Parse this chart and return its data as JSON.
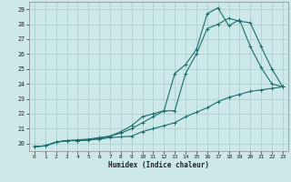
{
  "title": "",
  "xlabel": "Humidex (Indice chaleur)",
  "bg_color": "#cce8e8",
  "grid_color": "#aacccc",
  "line_color": "#1a6e6a",
  "xlim": [
    -0.5,
    23.5
  ],
  "ylim": [
    19.5,
    29.5
  ],
  "yticks": [
    20,
    21,
    22,
    23,
    24,
    25,
    26,
    27,
    28,
    29
  ],
  "xticks": [
    0,
    1,
    2,
    3,
    4,
    5,
    6,
    7,
    8,
    9,
    10,
    11,
    12,
    13,
    14,
    15,
    16,
    17,
    18,
    19,
    20,
    21,
    22,
    23
  ],
  "line1_x": [
    0,
    1,
    2,
    3,
    4,
    5,
    6,
    7,
    8,
    9,
    10,
    11,
    12,
    13,
    14,
    15,
    16,
    17,
    18,
    19,
    20,
    21,
    22,
    23
  ],
  "line1_y": [
    19.8,
    19.85,
    20.1,
    20.2,
    20.2,
    20.25,
    20.3,
    20.4,
    20.45,
    20.5,
    20.8,
    21.0,
    21.2,
    21.4,
    21.8,
    22.1,
    22.4,
    22.8,
    23.1,
    23.3,
    23.5,
    23.6,
    23.7,
    23.8
  ],
  "line2_x": [
    0,
    1,
    2,
    3,
    4,
    5,
    6,
    7,
    8,
    9,
    10,
    11,
    12,
    13,
    14,
    15,
    16,
    17,
    18,
    19,
    20,
    21,
    22,
    23
  ],
  "line2_y": [
    19.8,
    19.85,
    20.1,
    20.2,
    20.2,
    20.25,
    20.35,
    20.5,
    20.7,
    21.0,
    21.4,
    21.8,
    22.2,
    22.2,
    24.7,
    26.0,
    27.7,
    28.0,
    28.4,
    28.2,
    28.1,
    26.5,
    25.0,
    23.8
  ],
  "line3_x": [
    0,
    1,
    2,
    3,
    4,
    5,
    6,
    7,
    8,
    9,
    10,
    11,
    12,
    13,
    14,
    15,
    16,
    17,
    18,
    19,
    20,
    21,
    22,
    23
  ],
  "line3_y": [
    19.8,
    19.85,
    20.1,
    20.2,
    20.25,
    20.3,
    20.4,
    20.5,
    20.8,
    21.2,
    21.8,
    22.0,
    22.2,
    24.7,
    25.3,
    26.3,
    28.7,
    29.1,
    27.9,
    28.3,
    26.5,
    25.1,
    24.0,
    23.8
  ]
}
